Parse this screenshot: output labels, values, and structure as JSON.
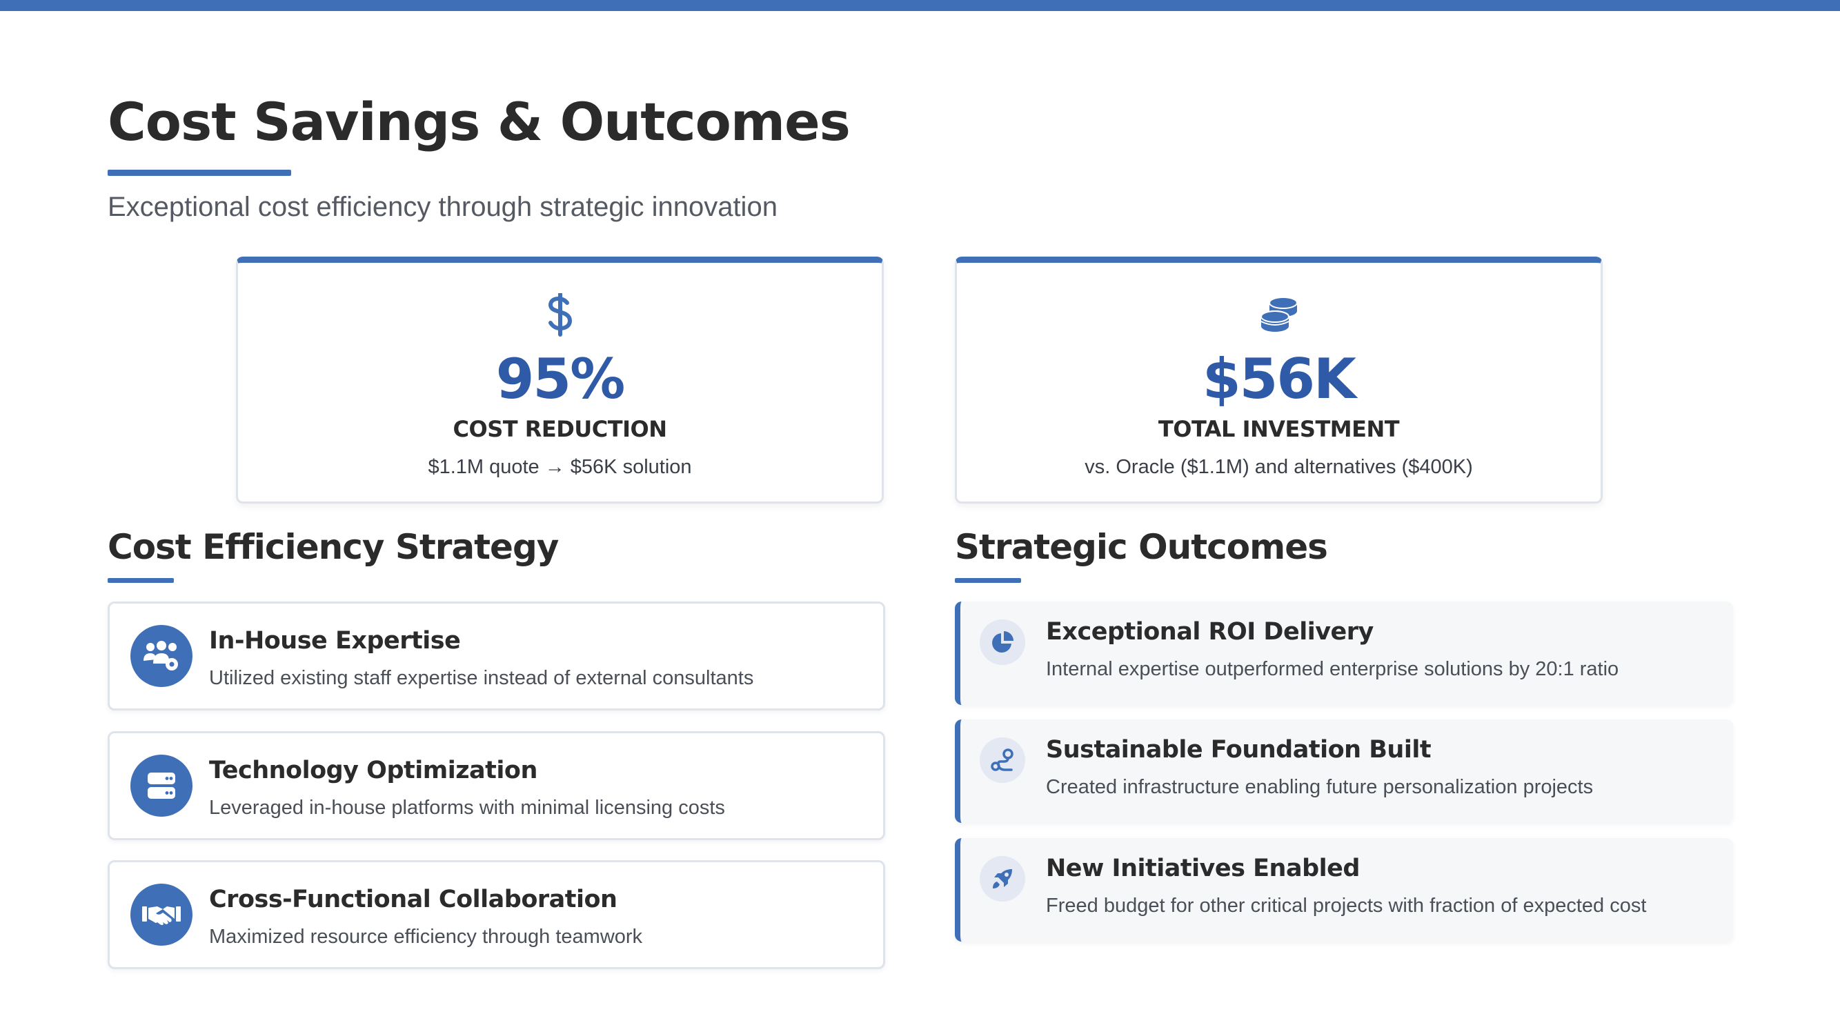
{
  "header": {
    "title": "Cost Savings & Outcomes",
    "subtitle": "Exceptional cost efficiency through strategic innovation"
  },
  "metrics": [
    {
      "icon": "dollar-icon",
      "value": "95%",
      "label": "COST REDUCTION",
      "description": "$1.1M quote → $56K solution"
    },
    {
      "icon": "coins-icon",
      "value": "$56K",
      "label": "TOTAL INVESTMENT",
      "description": "vs. Oracle ($1.1M) and alternatives ($400K)"
    }
  ],
  "strategy": {
    "title": "Cost Efficiency Strategy",
    "items": [
      {
        "icon": "users-gear-icon",
        "title": "In-House Expertise",
        "description": "Utilized existing staff expertise instead of external consultants"
      },
      {
        "icon": "server-icon",
        "title": "Technology Optimization",
        "description": "Leveraged in-house platforms with minimal licensing costs"
      },
      {
        "icon": "handshake-icon",
        "title": "Cross-Functional Collaboration",
        "description": "Maximized resource efficiency through teamwork"
      }
    ]
  },
  "outcomes": {
    "title": "Strategic Outcomes",
    "items": [
      {
        "icon": "pie-chart-icon",
        "title": "Exceptional ROI Delivery",
        "description": "Internal expertise outperformed enterprise solutions by 20:1 ratio"
      },
      {
        "icon": "route-icon",
        "title": "Sustainable Foundation Built",
        "description": "Created infrastructure enabling future personalization projects"
      },
      {
        "icon": "rocket-icon",
        "title": "New Initiatives Enabled",
        "description": "Freed budget for other critical projects with fraction of expected cost"
      }
    ]
  },
  "colors": {
    "accent": "#3f6fb7",
    "metric_value": "#2f5aa8",
    "text": "#2b2b2b"
  }
}
